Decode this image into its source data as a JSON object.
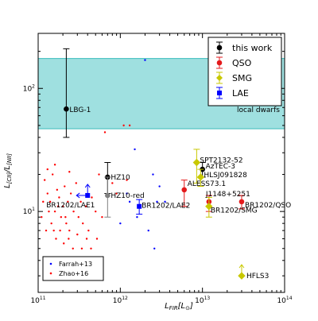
{
  "chart_data": {
    "type": "scatter",
    "title": "",
    "xlabel_main": "L",
    "xlabel_sub": "FIR",
    "xlabel_unit": "[L",
    "xlabel_unit_end": "]",
    "ylabel_main": "L",
    "ylabel_sub1": "[CII]",
    "ylabel_sep": "/L",
    "ylabel_sub2": "[NII]",
    "xscale": "log",
    "yscale": "log",
    "xlim": [
      100000000000.0,
      100000000000000.0
    ],
    "ylim": [
      2.2,
      280
    ],
    "x_ticks": [
      {
        "value": 100000000000.0,
        "base": "10",
        "exp": "11"
      },
      {
        "value": 1000000000000.0,
        "base": "10",
        "exp": "12"
      },
      {
        "value": 10000000000000.0,
        "base": "10",
        "exp": "13"
      },
      {
        "value": 100000000000000.0,
        "base": "10",
        "exp": "14"
      }
    ],
    "y_ticks": [
      {
        "value": 10,
        "base": "10",
        "exp": "1"
      },
      {
        "value": 100,
        "base": "10",
        "exp": "2"
      }
    ],
    "band": {
      "y_range": [
        47,
        175
      ],
      "label": "local dwarfs",
      "color": "#9fe0e0",
      "edge": "#3bbcbc"
    },
    "legend": {
      "placement": "top-right",
      "entries": [
        {
          "label": "this work",
          "color": "#000000",
          "marker": "circle"
        },
        {
          "label": "QSO",
          "color": "#e41a1c",
          "marker": "circle"
        },
        {
          "label": "SMG",
          "color": "#c8c800",
          "marker": "diamond"
        },
        {
          "label": "LAE",
          "color": "#0000ff",
          "marker": "square"
        }
      ]
    },
    "legend2": {
      "placement": "bottom-left",
      "entries": [
        {
          "label": "Farrah+13",
          "color": "#0000ff"
        },
        {
          "label": "Zhao+16",
          "color": "#ff0000"
        }
      ]
    },
    "series": [
      {
        "name": "this work",
        "color": "#000000",
        "points": [
          {
            "label": "LBG-1",
            "x": 220000000000.0,
            "y": 68,
            "ylo": 40,
            "yhi": 210
          },
          {
            "label": "HZ10",
            "x": 700000000000.0,
            "y": 19,
            "ylo": 14,
            "yhi": 25
          },
          {
            "label": "AzTEC-3",
            "x": 10000000000000.0,
            "y": 22,
            "ylo": 19,
            "yhi": 25
          }
        ]
      },
      {
        "name": "this work (gray)",
        "color": "#808080",
        "points": [
          {
            "label": "HZ10-red",
            "x": 700000000000.0,
            "y": 13.5,
            "ylo": 9,
            "yhi": 19
          }
        ]
      },
      {
        "name": "QSO",
        "color": "#e41a1c",
        "points": [
          {
            "label": "ALESS73.1",
            "x": 6000000000000.0,
            "y": 15,
            "ylo": 11,
            "yhi": 18
          },
          {
            "label": "J1148+5251",
            "x": 12000000000000.0,
            "y": 12,
            "ylo": 10,
            "yhi": 13.5
          },
          {
            "label": "BR1202/QSO",
            "x": 30000000000000.0,
            "y": 12,
            "ylo": 10.5,
            "yhi": 13.5
          }
        ]
      },
      {
        "name": "SMG",
        "color": "#c8c800",
        "points": [
          {
            "label": "SPT2132-52",
            "x": 8500000000000.0,
            "y": 25,
            "ylo": 17,
            "yhi": 32
          },
          {
            "label": "HLSJ091828",
            "x": 9500000000000.0,
            "y": 19,
            "ylo": 16,
            "yhi": 22
          },
          {
            "label": "BR1202/SMG",
            "x": 12000000000000.0,
            "y": 11,
            "ylo": 9,
            "yhi": 13
          },
          {
            "label": "HFLS3",
            "x": 30000000000000.0,
            "y": 3.0,
            "lower_limit": true
          }
        ]
      },
      {
        "name": "LAE",
        "color": "#0000ff",
        "points": [
          {
            "label": "BR1202/LAE1",
            "x": 400000000000.0,
            "y": 13.5,
            "lower_limit": true,
            "upper_limit_x": true
          },
          {
            "label": "BR1202/LAE2",
            "x": 1700000000000.0,
            "y": 11,
            "ylo": 9.5,
            "yhi": 12.5
          }
        ]
      },
      {
        "name": "Farrah+13",
        "color": "#0000ff",
        "points": [
          {
            "x": 2000000000000.0,
            "y": 170
          },
          {
            "x": 1500000000000.0,
            "y": 32
          },
          {
            "x": 2500000000000.0,
            "y": 20
          },
          {
            "x": 1200000000000.0,
            "y": 14
          },
          {
            "x": 3000000000000.0,
            "y": 16
          },
          {
            "x": 2800000000000.0,
            "y": 12
          },
          {
            "x": 1600000000000.0,
            "y": 9
          },
          {
            "x": 2200000000000.0,
            "y": 7
          },
          {
            "x": 3500000000000.0,
            "y": 12
          },
          {
            "x": 1000000000000.0,
            "y": 8
          },
          {
            "x": 2600000000000.0,
            "y": 5
          },
          {
            "x": 1300000000000.0,
            "y": 12
          }
        ]
      },
      {
        "name": "Zhao+16",
        "color": "#ff0000",
        "points": [
          {
            "x": 120000000000.0,
            "y": 18
          },
          {
            "x": 130000000000.0,
            "y": 14
          },
          {
            "x": 140000000000.0,
            "y": 12
          },
          {
            "x": 150000000000.0,
            "y": 20
          },
          {
            "x": 160000000000.0,
            "y": 10
          },
          {
            "x": 170000000000.0,
            "y": 15
          },
          {
            "x": 180000000000.0,
            "y": 13
          },
          {
            "x": 190000000000.0,
            "y": 9
          },
          {
            "x": 200000000000.0,
            "y": 11
          },
          {
            "x": 210000000000.0,
            "y": 16
          },
          {
            "x": 220000000000.0,
            "y": 8
          },
          {
            "x": 230000000000.0,
            "y": 12
          },
          {
            "x": 240000000000.0,
            "y": 7
          },
          {
            "x": 250000000000.0,
            "y": 14
          },
          {
            "x": 270000000000.0,
            "y": 10
          },
          {
            "x": 290000000000.0,
            "y": 17
          },
          {
            "x": 310000000000.0,
            "y": 9
          },
          {
            "x": 330000000000.0,
            "y": 12
          },
          {
            "x": 350000000000.0,
            "y": 8
          },
          {
            "x": 380000000000.0,
            "y": 11
          },
          {
            "x": 410000000000.0,
            "y": 7
          },
          {
            "x": 450000000000.0,
            "y": 13
          },
          {
            "x": 500000000000.0,
            "y": 10
          },
          {
            "x": 550000000000.0,
            "y": 20
          },
          {
            "x": 600000000000.0,
            "y": 9
          },
          {
            "x": 110000000000.0,
            "y": 9
          },
          {
            "x": 125000000000.0,
            "y": 7
          },
          {
            "x": 145000000000.0,
            "y": 8
          },
          {
            "x": 165000000000.0,
            "y": 6
          },
          {
            "x": 185000000000.0,
            "y": 7
          },
          {
            "x": 205000000000.0,
            "y": 5.5
          },
          {
            "x": 235000000000.0,
            "y": 6
          },
          {
            "x": 265000000000.0,
            "y": 5
          },
          {
            "x": 300000000000.0,
            "y": 6.5
          },
          {
            "x": 340000000000.0,
            "y": 5
          },
          {
            "x": 390000000000.0,
            "y": 6
          },
          {
            "x": 440000000000.0,
            "y": 5
          },
          {
            "x": 520000000000.0,
            "y": 6
          },
          {
            "x": 650000000000.0,
            "y": 44
          },
          {
            "x": 1100000000000.0,
            "y": 50
          },
          {
            "x": 1300000000000.0,
            "y": 50
          },
          {
            "x": 800000000000.0,
            "y": 17
          },
          {
            "x": 900000000000.0,
            "y": 14
          },
          {
            "x": 1200000000000.0,
            "y": 18
          },
          {
            "x": 160000000000.0,
            "y": 24
          },
          {
            "x": 130000000000.0,
            "y": 22
          },
          {
            "x": 240000000000.0,
            "y": 21
          },
          {
            "x": 115000000000.0,
            "y": 12
          },
          {
            "x": 135000000000.0,
            "y": 10
          },
          {
            "x": 155000000000.0,
            "y": 7
          },
          {
            "x": 175000000000.0,
            "y": 11
          },
          {
            "x": 215000000000.0,
            "y": 9
          }
        ]
      }
    ]
  }
}
